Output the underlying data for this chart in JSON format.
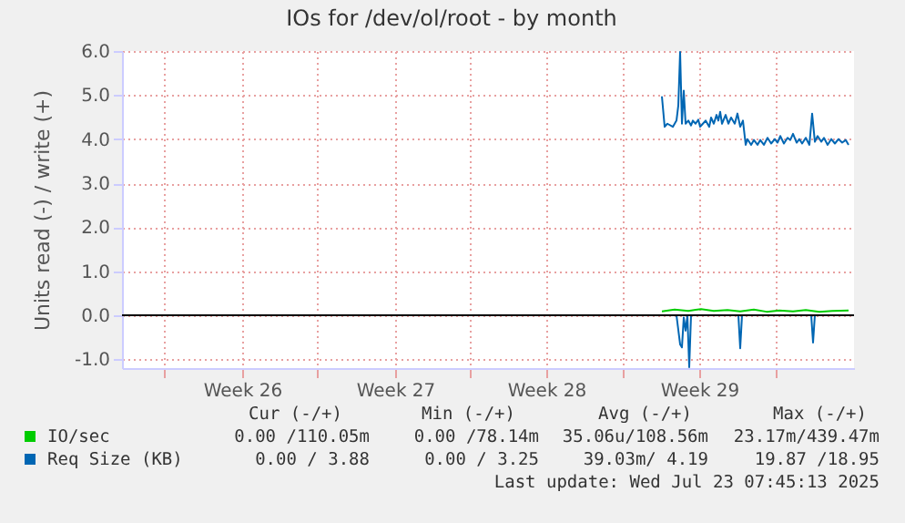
{
  "chart_data": {
    "type": "line",
    "title": "IOs for /dev/ol/root - by month",
    "ylabel": "Units read (-) / write (+)",
    "xlim": [
      "2025-06-20T00:00",
      "2025-07-23T12:00"
    ],
    "ylim": [
      -1.2,
      6.0
    ],
    "xticks": [
      {
        "value": "2025-06-21T22:00",
        "label": null
      },
      {
        "value": "2025-06-25T12:00",
        "label": "Week 26"
      },
      {
        "value": "2025-06-28T22:00",
        "label": null
      },
      {
        "value": "2025-07-02T12:00",
        "label": "Week 27"
      },
      {
        "value": "2025-07-05T22:00",
        "label": null
      },
      {
        "value": "2025-07-09T10:00",
        "label": "Week 28"
      },
      {
        "value": "2025-07-12T22:00",
        "label": null
      },
      {
        "value": "2025-07-16T10:00",
        "label": "Week 29"
      },
      {
        "value": "2025-07-19T22:00",
        "label": null
      }
    ],
    "yticks": [
      {
        "value": -1,
        "label": "-1.0"
      },
      {
        "value": 0,
        "label": "0.0"
      },
      {
        "value": 1,
        "label": "1.0"
      },
      {
        "value": 2,
        "label": "2.0"
      },
      {
        "value": 3,
        "label": "3.0"
      },
      {
        "value": 4,
        "label": "4.0"
      },
      {
        "value": 5,
        "label": "5.0"
      },
      {
        "value": 6,
        "label": "6.0"
      }
    ],
    "grid": true,
    "legend": "bottom",
    "line_style": "solid",
    "marker": "none",
    "ref_lines": [
      {
        "axis": "y",
        "value": 0,
        "label": null,
        "color": "#000000"
      }
    ],
    "series": [
      {
        "name": "IO/sec",
        "color": "#00cc00",
        "x": [
          "2025-07-14T17:00",
          "2025-07-15T07:00",
          "2025-07-15T22:00",
          "2025-07-16T12:00",
          "2025-07-17T02:00",
          "2025-07-17T17:00",
          "2025-07-18T07:00",
          "2025-07-18T22:00",
          "2025-07-19T12:00",
          "2025-07-20T02:00",
          "2025-07-20T17:00",
          "2025-07-21T07:00",
          "2025-07-21T22:00",
          "2025-07-22T12:00",
          "2025-07-23T06:00"
        ],
        "values": [
          0.09,
          0.13,
          0.1,
          0.14,
          0.1,
          0.12,
          0.09,
          0.13,
          0.08,
          0.11,
          0.09,
          0.12,
          0.08,
          0.1,
          0.11
        ]
      },
      {
        "name": "Req Size (KB)",
        "color": "#0066b3",
        "x": [
          "2025-07-14T17:00",
          "2025-07-14T20:00",
          "2025-07-14T23:00",
          "2025-07-15T05:00",
          "2025-07-15T09:00",
          "2025-07-15T11:00",
          "2025-07-15T13:00",
          "2025-07-15T15:00",
          "2025-07-15T17:00",
          "2025-07-15T19:00",
          "2025-07-15T22:00",
          "2025-07-16T01:00",
          "2025-07-16T03:00",
          "2025-07-16T06:00",
          "2025-07-16T09:00",
          "2025-07-16T11:00",
          "2025-07-16T14:00",
          "2025-07-16T17:00",
          "2025-07-16T21:00",
          "2025-07-16T23:00",
          "2025-07-17T02:00",
          "2025-07-17T05:00",
          "2025-07-17T07:00",
          "2025-07-17T09:00",
          "2025-07-17T11:00",
          "2025-07-17T15:00",
          "2025-07-17T18:00",
          "2025-07-17T21:00",
          "2025-07-18T01:00",
          "2025-07-18T04:00",
          "2025-07-18T07:00",
          "2025-07-18T10:00",
          "2025-07-18T13:00",
          "2025-07-18T15:00",
          "2025-07-18T19:00",
          "2025-07-18T22:00",
          "2025-07-19T02:00",
          "2025-07-19T05:00",
          "2025-07-19T09:00",
          "2025-07-19T13:00",
          "2025-07-19T17:00",
          "2025-07-19T21:00",
          "2025-07-20T00:00",
          "2025-07-20T03:00",
          "2025-07-20T07:00",
          "2025-07-20T11:00",
          "2025-07-20T14:00",
          "2025-07-20T17:00",
          "2025-07-20T21:00",
          "2025-07-21T00:00",
          "2025-07-21T03:00",
          "2025-07-21T07:00",
          "2025-07-21T11:00",
          "2025-07-21T14:00",
          "2025-07-21T17:00",
          "2025-07-21T20:00",
          "2025-07-22T00:00",
          "2025-07-22T03:00",
          "2025-07-22T07:00",
          "2025-07-22T11:00",
          "2025-07-22T15:00",
          "2025-07-22T19:00",
          "2025-07-22T23:00",
          "2025-07-23T03:00",
          "2025-07-23T06:00"
        ],
        "values": [
          4.97,
          4.28,
          4.35,
          4.28,
          4.42,
          4.76,
          5.98,
          4.35,
          5.1,
          4.35,
          4.42,
          4.31,
          4.42,
          4.35,
          4.44,
          4.28,
          4.35,
          4.42,
          4.28,
          4.49,
          4.35,
          4.55,
          4.42,
          4.62,
          4.35,
          4.55,
          4.35,
          4.49,
          4.35,
          4.58,
          4.28,
          4.42,
          3.87,
          4.0,
          3.87,
          3.98,
          3.87,
          3.98,
          3.87,
          4.03,
          3.9,
          4.0,
          3.92,
          4.07,
          3.9,
          4.03,
          3.98,
          4.12,
          3.92,
          4.0,
          3.9,
          4.03,
          3.87,
          4.58,
          3.94,
          4.07,
          3.94,
          4.03,
          3.87,
          4.0,
          3.9,
          4.0,
          3.92,
          3.98,
          3.87
        ]
      },
      {
        "color": "#0066b3",
        "x": [
          "2025-07-14T17:00",
          "2025-07-15T09:00",
          "2025-07-15T13:00",
          "2025-07-15T15:00",
          "2025-07-15T17:00",
          "2025-07-15T19:00",
          "2025-07-15T21:00",
          "2025-07-15T23:00",
          "2025-07-16T01:00",
          "2025-07-18T05:00",
          "2025-07-18T07:00",
          "2025-07-18T09:00",
          "2025-07-21T13:00",
          "2025-07-21T15:00",
          "2025-07-21T17:00",
          "2025-07-23T06:00"
        ],
        "values": [
          0,
          0,
          -0.66,
          -0.73,
          -0.05,
          -0.35,
          0,
          -1.18,
          0,
          0,
          -0.75,
          0,
          0,
          -0.62,
          0,
          0
        ]
      }
    ],
    "annotations": [
      "Cur (-/+)",
      "Min (-/+)",
      "Avg (-/+)",
      "Max (-/+)",
      "0.00 /110.05m",
      "0.00 /78.14m",
      "35.06u/108.56m",
      "23.17m/439.47m",
      "0.00 / 3.88",
      "0.00 / 3.25",
      "39.03m/ 4.19",
      "19.87 /18.95",
      "Last update: Wed Jul 23 07:45:13 2025"
    ]
  }
}
